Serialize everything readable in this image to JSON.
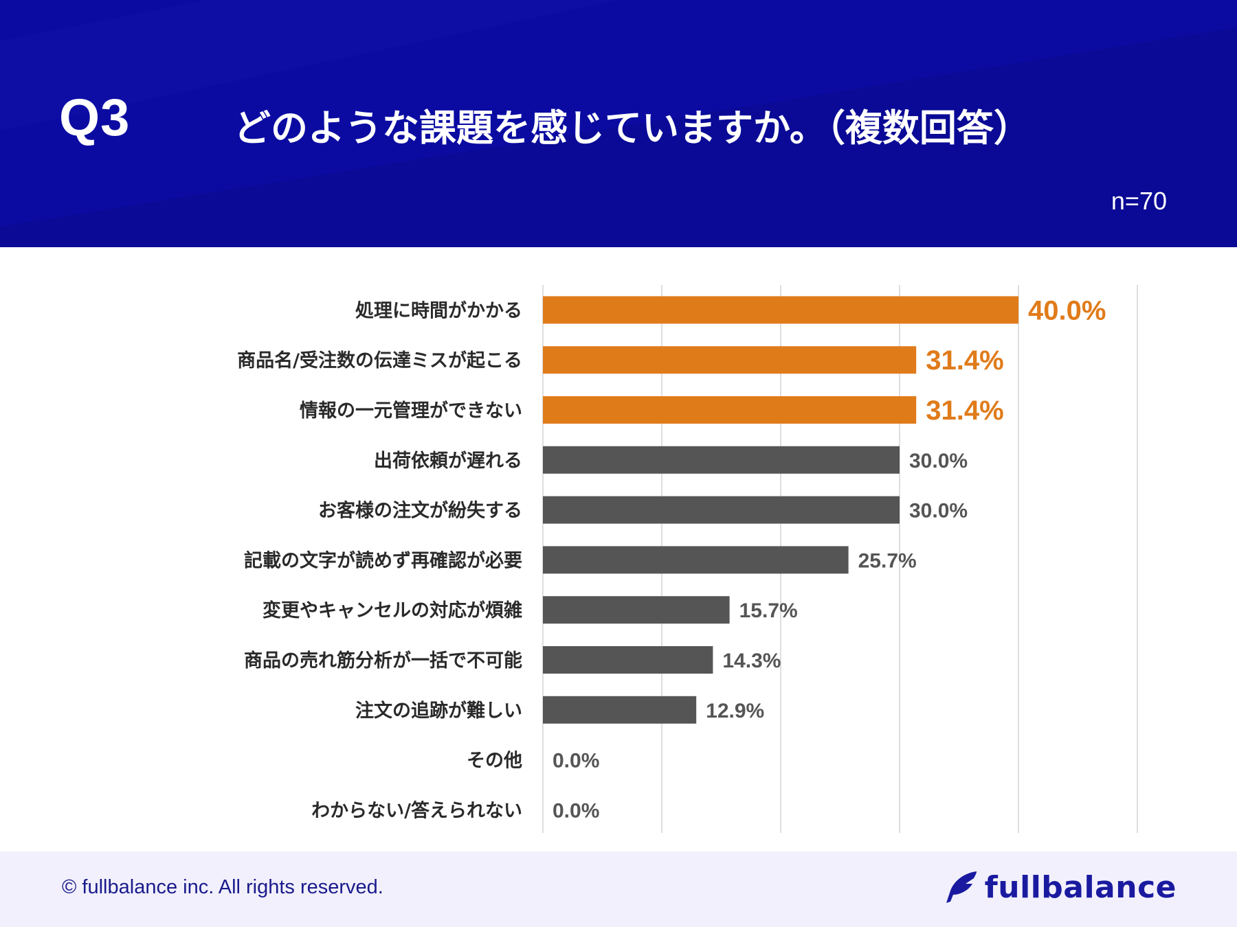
{
  "header": {
    "question_number": "Q3",
    "title": "どのような課題を感じていますか。（複数回答）",
    "sample_size": "n=70"
  },
  "colors": {
    "header_bg": "#0a0a9e",
    "highlight": "#e07b1a",
    "bar": "#555555",
    "footer_bg": "#f1f0fc",
    "brand": "#1a1aa0"
  },
  "chart_data": {
    "type": "bar",
    "orientation": "horizontal",
    "title": "どのような課題を感じていますか。（複数回答）",
    "xlabel": "",
    "ylabel": "",
    "xlim": [
      0,
      50
    ],
    "grid": true,
    "categories": [
      "処理に時間がかかる",
      "商品名/受注数の伝達ミスが起こる",
      "情報の一元管理ができない",
      "出荷依頼が遅れる",
      "お客様の注文が紛失する",
      "記載の文字が読めず再確認が必要",
      "変更やキャンセルの対応が煩雑",
      "商品の売れ筋分析が一括で不可能",
      "注文の追跡が難しい",
      "その他",
      "わからない/答えられない"
    ],
    "values": [
      40.0,
      31.4,
      31.4,
      30.0,
      30.0,
      25.7,
      15.7,
      14.3,
      12.9,
      0.0,
      0.0
    ],
    "value_labels": [
      "40.0%",
      "31.4%",
      "31.4%",
      "30.0%",
      "30.0%",
      "25.7%",
      "15.7%",
      "14.3%",
      "12.9%",
      "0.0%",
      "0.0%"
    ],
    "highlighted": [
      true,
      true,
      true,
      false,
      false,
      false,
      false,
      false,
      false,
      false,
      false
    ]
  },
  "footer": {
    "copyright": "© fullbalance inc. All rights reserved.",
    "brand_name": "fullbalance",
    "logo_icon": "feather-icon"
  }
}
